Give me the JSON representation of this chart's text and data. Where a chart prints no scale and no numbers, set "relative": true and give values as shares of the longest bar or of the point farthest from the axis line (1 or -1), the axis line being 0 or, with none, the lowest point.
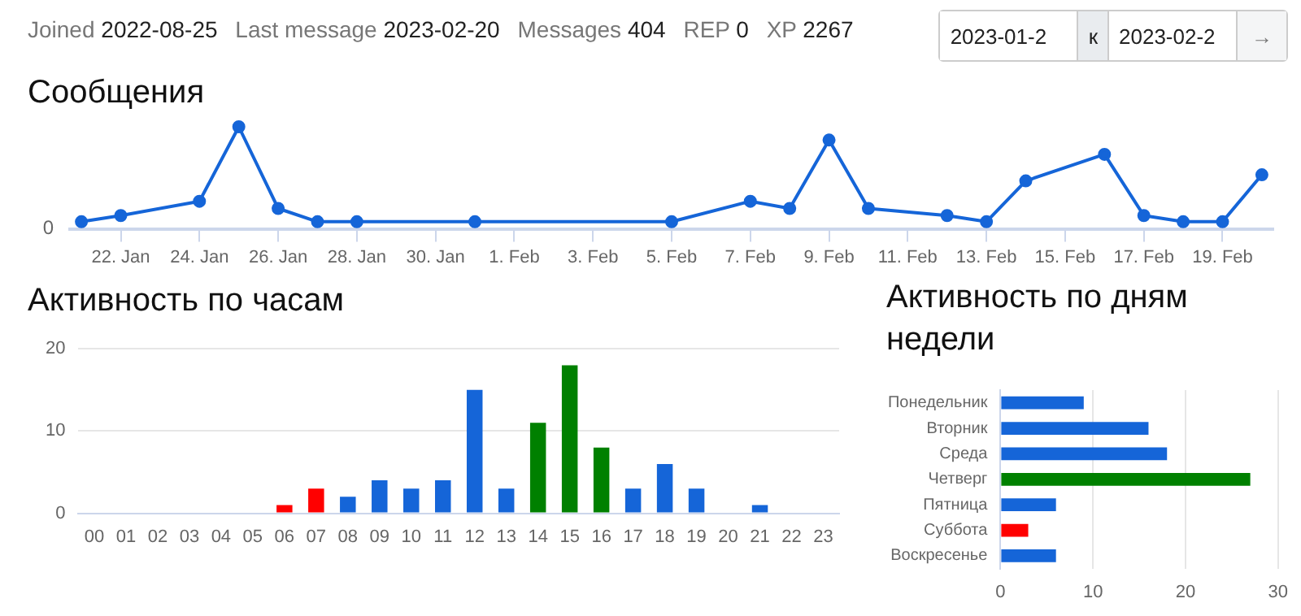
{
  "chart_data": [
    {
      "type": "other",
      "annotations": [
        "Joined",
        "2022-08-25",
        "Last message",
        "2023-02-20",
        "Messages",
        "404",
        "REP",
        "0",
        "XP",
        "2267",
        "2023-01-2",
        "к",
        "2023-02-2",
        "→"
      ]
    },
    {
      "type": "line",
      "title": "Сообщения",
      "relative": true,
      "marker": "circle",
      "color": "#1565d8",
      "x": [
        "2023-01-21",
        "2023-01-22",
        "2023-01-24",
        "2023-01-25",
        "2023-01-26",
        "2023-01-27",
        "2023-01-28",
        "2023-01-31",
        "2023-02-05",
        "2023-02-07",
        "2023-02-08",
        "2023-02-09",
        "2023-02-10",
        "2023-02-12",
        "2023-02-13",
        "2023-02-14",
        "2023-02-16",
        "2023-02-17",
        "2023-02-18",
        "2023-02-19",
        "2023-02-20"
      ],
      "values": [
        0.07,
        0.13,
        0.27,
        1,
        0.2,
        0.07,
        0.07,
        0.07,
        0.07,
        0.27,
        0.2,
        0.87,
        0.2,
        0.13,
        0.07,
        0.47,
        0.73,
        0.13,
        0.07,
        0.07,
        0.53
      ],
      "xlim": [
        "2023-01-20T17:00",
        "2023-02-20T07:00"
      ],
      "xticks": [
        {
          "value": "2023-01-22",
          "label": "22. Jan"
        },
        {
          "value": "2023-01-24",
          "label": "24. Jan"
        },
        {
          "value": "2023-01-26",
          "label": "26. Jan"
        },
        {
          "value": "2023-01-28",
          "label": "28. Jan"
        },
        {
          "value": "2023-01-30",
          "label": "30. Jan"
        },
        {
          "value": "2023-02-01",
          "label": "1. Feb"
        },
        {
          "value": "2023-02-03",
          "label": "3. Feb"
        },
        {
          "value": "2023-02-05",
          "label": "5. Feb"
        },
        {
          "value": "2023-02-07",
          "label": "7. Feb"
        },
        {
          "value": "2023-02-09",
          "label": "9. Feb"
        },
        {
          "value": "2023-02-11",
          "label": "11. Feb"
        },
        {
          "value": "2023-02-13",
          "label": "13. Feb"
        },
        {
          "value": "2023-02-15",
          "label": "15. Feb"
        },
        {
          "value": "2023-02-17",
          "label": "17. Feb"
        },
        {
          "value": "2023-02-19",
          "label": "19. Feb"
        }
      ],
      "annotations": [
        "0"
      ]
    },
    {
      "type": "bar",
      "title": "Активность по часам",
      "grid": "y",
      "ylim": [
        0,
        20
      ],
      "yticks": [
        0,
        10,
        20
      ],
      "categories": [
        "00",
        "01",
        "02",
        "03",
        "04",
        "05",
        "06",
        "07",
        "08",
        "09",
        "10",
        "11",
        "12",
        "13",
        "14",
        "15",
        "16",
        "17",
        "18",
        "19",
        "20",
        "21",
        "22",
        "23"
      ],
      "values": [
        0,
        0,
        0,
        0,
        0,
        0,
        1,
        3,
        2,
        4,
        3,
        4,
        15,
        3,
        11,
        18,
        8,
        3,
        6,
        3,
        0,
        1,
        0,
        0
      ],
      "colors": [
        "#1565d8",
        "#1565d8",
        "#1565d8",
        "#1565d8",
        "#1565d8",
        "#1565d8",
        "#ff0000",
        "#ff0000",
        "#1565d8",
        "#1565d8",
        "#1565d8",
        "#1565d8",
        "#1565d8",
        "#1565d8",
        "#008000",
        "#008000",
        "#008000",
        "#1565d8",
        "#1565d8",
        "#1565d8",
        "#1565d8",
        "#1565d8",
        "#1565d8",
        "#1565d8"
      ]
    },
    {
      "type": "bar",
      "orientation": "horizontal",
      "title": "Активность по дням недели",
      "grid": "x",
      "xlim": [
        0,
        30
      ],
      "xticks": [
        0,
        10,
        20,
        30
      ],
      "categories": [
        "Понедельник",
        "Вторник",
        "Среда",
        "Четверг",
        "Пятница",
        "Суббота",
        "Воскресенье"
      ],
      "values": [
        9,
        16,
        18,
        27,
        6,
        3,
        6
      ],
      "colors": [
        "#1565d8",
        "#1565d8",
        "#1565d8",
        "#008000",
        "#1565d8",
        "#ff0000",
        "#1565d8"
      ]
    }
  ]
}
